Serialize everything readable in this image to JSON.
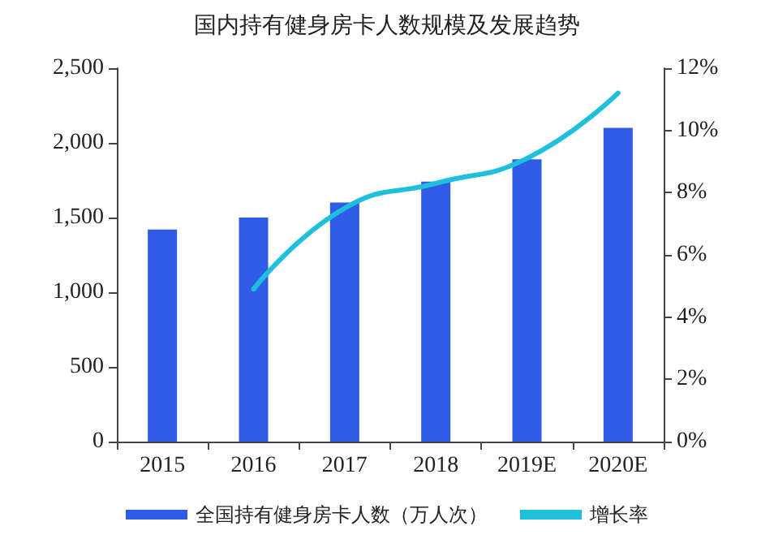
{
  "chart_data": {
    "type": "bar",
    "title": "国内持有健身房卡人数规模及发展趋势",
    "categories": [
      "2015",
      "2016",
      "2017",
      "2018",
      "2019E",
      "2020E"
    ],
    "series": [
      {
        "name": "全国持有健身房卡人数（万人次）",
        "color": "#2f5ce6",
        "values": [
          1420,
          1500,
          1600,
          1740,
          1890,
          2100
        ]
      },
      {
        "name": "增长率",
        "type": "line",
        "axis": "y2",
        "color": "#1ec0dc",
        "values": [
          null,
          4.9,
          7.5,
          8.3,
          9.1,
          11.2
        ]
      }
    ],
    "ylim": [
      0,
      2500
    ],
    "yticks": [
      {
        "value": 0,
        "label": "0"
      },
      {
        "value": 500,
        "label": "500"
      },
      {
        "value": 1000,
        "label": "1,000"
      },
      {
        "value": 1500,
        "label": "1,500"
      },
      {
        "value": 2000,
        "label": "2,000"
      },
      {
        "value": 2500,
        "label": "2,500"
      }
    ],
    "y2lim": [
      0,
      12
    ],
    "y2ticks": [
      {
        "value": 0,
        "label": "0%"
      },
      {
        "value": 2,
        "label": "2%"
      },
      {
        "value": 4,
        "label": "4%"
      },
      {
        "value": 6,
        "label": "6%"
      },
      {
        "value": 8,
        "label": "8%"
      },
      {
        "value": 10,
        "label": "10%"
      },
      {
        "value": 12,
        "label": "12%"
      }
    ],
    "grid": false,
    "legend": "bottom",
    "marker": "none",
    "line_style": "solid"
  }
}
